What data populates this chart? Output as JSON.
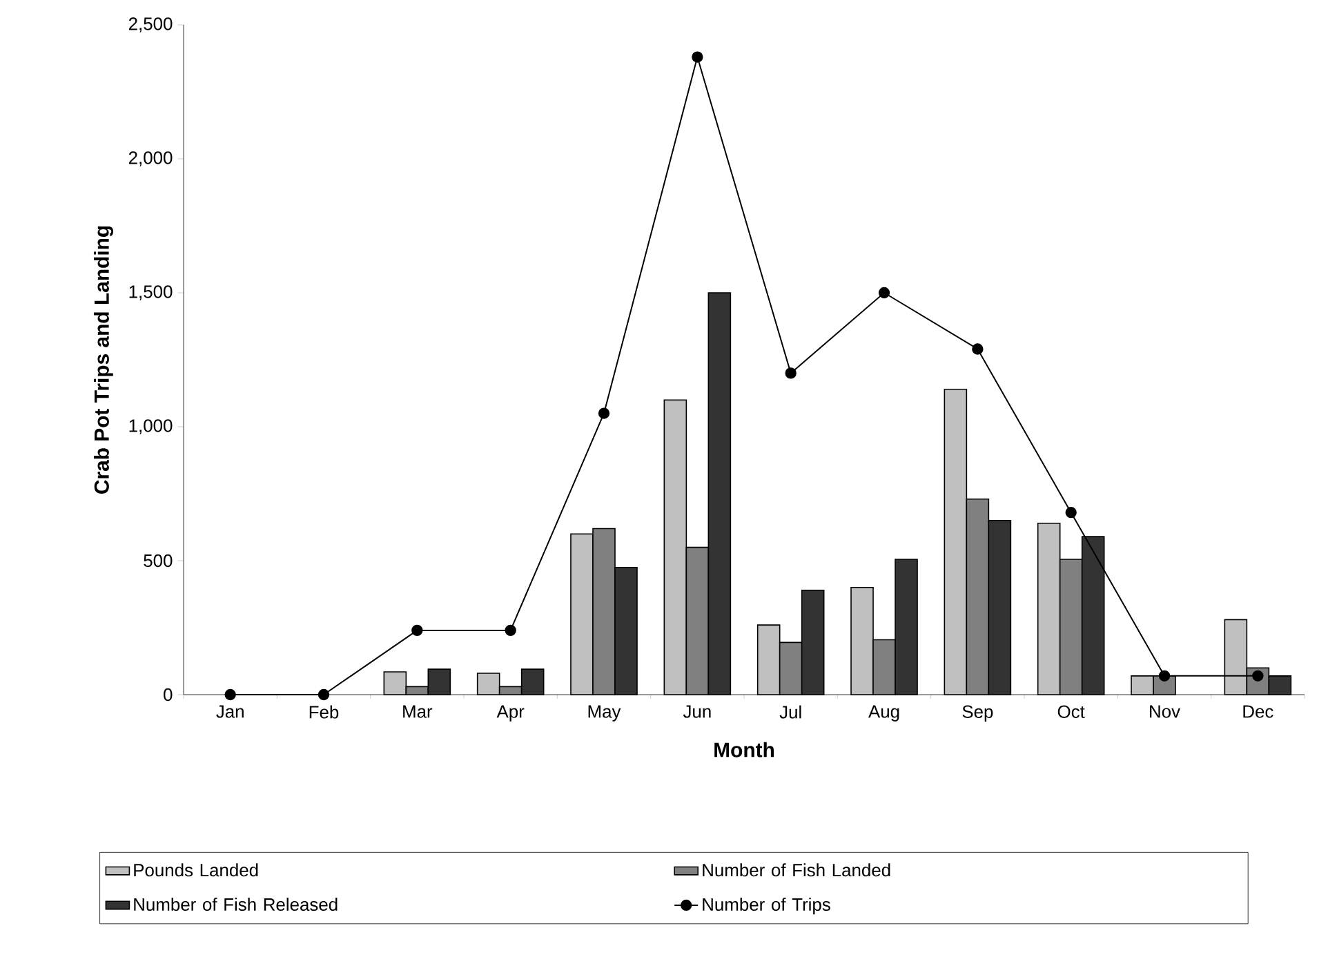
{
  "chart_data": {
    "type": "bar",
    "xlabel": "Month",
    "ylabel": "Crab Pot Trips and Landing",
    "categories": [
      "Jan",
      "Feb",
      "Mar",
      "Apr",
      "May",
      "Jun",
      "Jul",
      "Aug",
      "Sep",
      "Oct",
      "Nov",
      "Dec"
    ],
    "series": [
      {
        "name": "Pounds Landed",
        "color": "#c0c0c0",
        "values": [
          null,
          null,
          85,
          80,
          600,
          1100,
          260,
          400,
          1140,
          640,
          70,
          280
        ]
      },
      {
        "name": "Number of Fish Landed",
        "color": "#808080",
        "values": [
          null,
          null,
          30,
          30,
          620,
          550,
          195,
          205,
          730,
          505,
          70,
          100
        ]
      },
      {
        "name": "Number of Fish Released",
        "color": "#333333",
        "values": [
          null,
          null,
          95,
          95,
          475,
          1500,
          390,
          505,
          650,
          590,
          null,
          70
        ]
      },
      {
        "name": "Number of Trips",
        "type": "line",
        "color": "#000000",
        "marker": "circle",
        "line_style": "solid",
        "values": [
          0,
          0,
          240,
          240,
          1050,
          2380,
          1200,
          1500,
          1290,
          680,
          70,
          70
        ]
      }
    ],
    "ylim": [
      0,
      2500
    ],
    "yticks": [
      0,
      500,
      {
        "value": 1000,
        "label": "1,000"
      },
      {
        "value": 1500,
        "label": "1,500"
      },
      {
        "value": 2000,
        "label": "2,000"
      },
      {
        "value": 2500,
        "label": "2,500"
      }
    ],
    "grid": false,
    "legend": "bottom"
  }
}
